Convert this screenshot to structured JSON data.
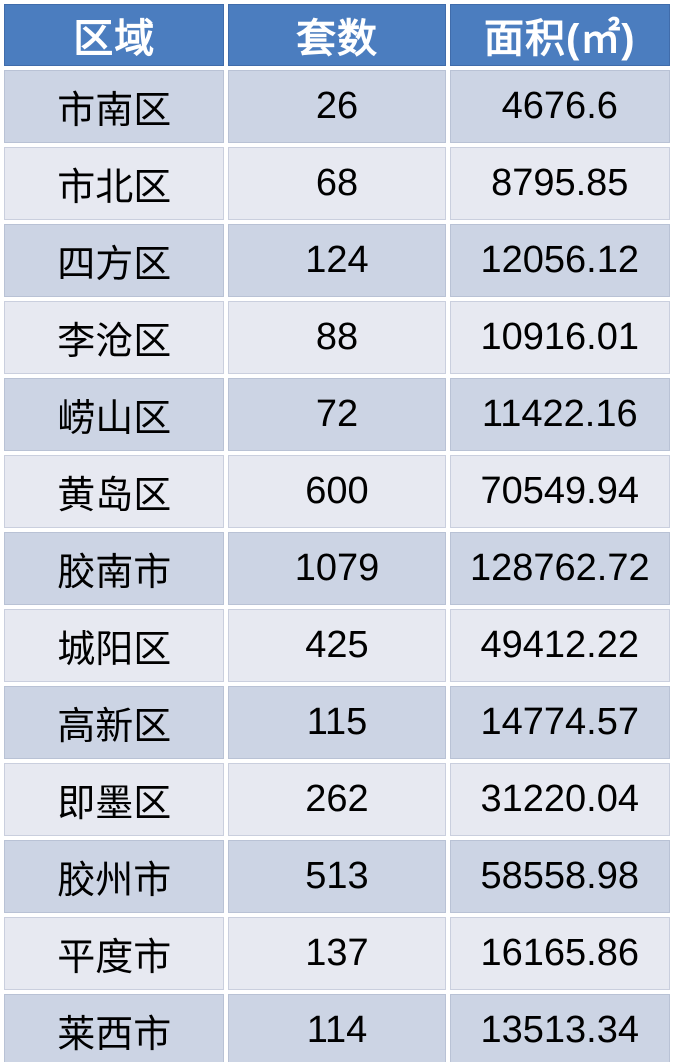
{
  "chart_data": {
    "type": "table",
    "columns": [
      "区域",
      "套数",
      "面积(㎡)"
    ],
    "rows": [
      [
        "市南区",
        "26",
        "4676.6"
      ],
      [
        "市北区",
        "68",
        "8795.85"
      ],
      [
        "四方区",
        "124",
        "12056.12"
      ],
      [
        "李沧区",
        "88",
        "10916.01"
      ],
      [
        "崂山区",
        "72",
        "11422.16"
      ],
      [
        "黄岛区",
        "600",
        "70549.94"
      ],
      [
        "胶南市",
        "1079",
        "128762.72"
      ],
      [
        "城阳区",
        "425",
        "49412.22"
      ],
      [
        "高新区",
        "115",
        "14774.57"
      ],
      [
        "即墨区",
        "262",
        "31220.04"
      ],
      [
        "胶州市",
        "513",
        "58558.98"
      ],
      [
        "平度市",
        "137",
        "16165.86"
      ],
      [
        "莱西市",
        "114",
        "13513.34"
      ]
    ],
    "layout_hints": {
      "header_position": "top",
      "zebra_striping": "odd-rows-dark",
      "cell_alignment": "center"
    }
  },
  "colors": {
    "header_bg": "#4b7dbf",
    "header_text": "#ffffff",
    "row_dark": "#ccd4e4",
    "row_light": "#e7e9f1",
    "body_text": "#000000",
    "page_bg": "#ffffff"
  }
}
